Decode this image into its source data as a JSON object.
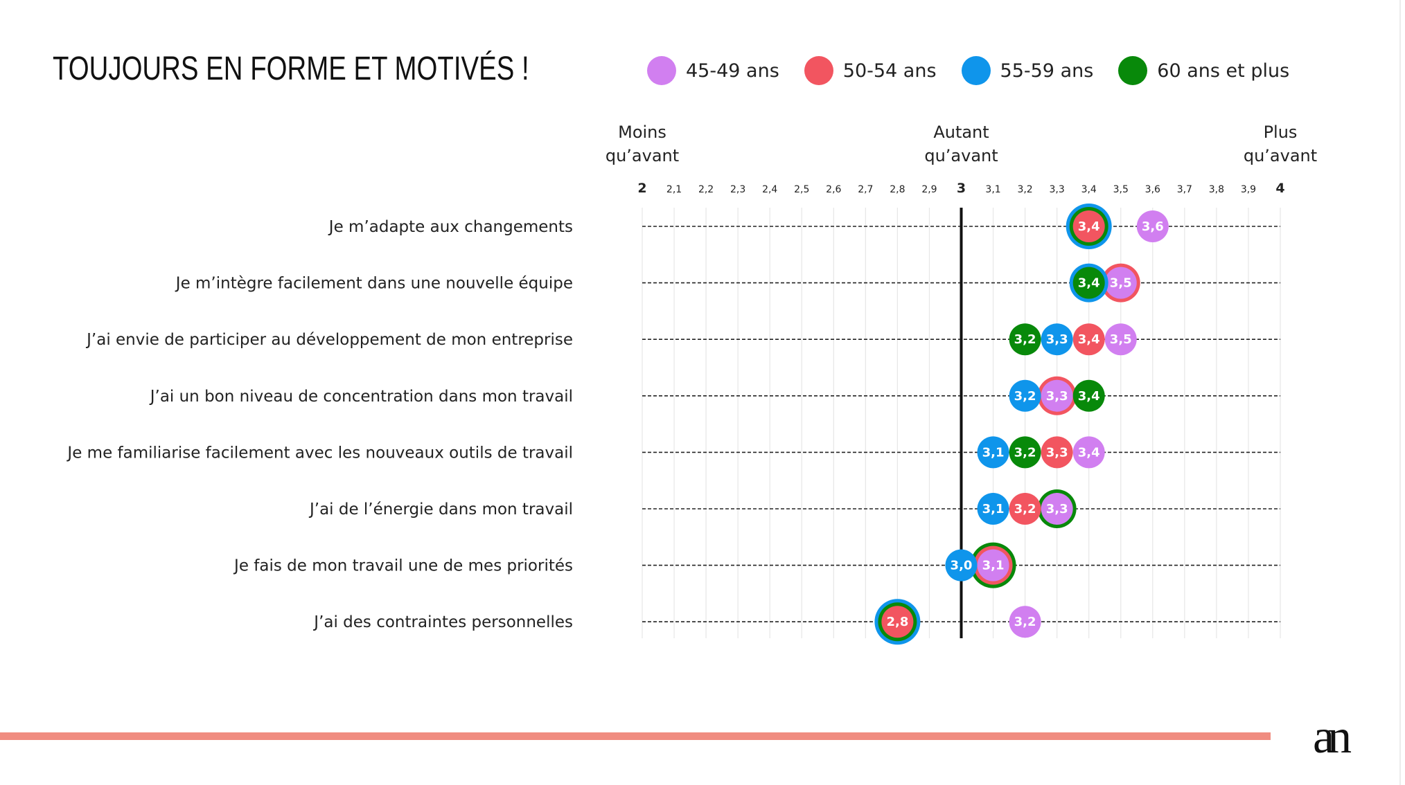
{
  "title": "TOUJOURS EN FORME ET MOTIVÉS !",
  "brand": {
    "logo_text": "an"
  },
  "colors": {
    "45-49": "#d17ff0",
    "50-54": "#f25560",
    "55-59": "#0f95eb",
    "60+": "#08890a",
    "accent_bar": "#f08c80"
  },
  "legend": [
    {
      "key": "45-49",
      "label": "45-49 ans"
    },
    {
      "key": "50-54",
      "label": "50-54 ans"
    },
    {
      "key": "55-59",
      "label": "55-59 ans"
    },
    {
      "key": "60+",
      "label": "60 ans et plus"
    }
  ],
  "chart_data": {
    "type": "scatter",
    "title": "TOUJOURS EN FORME ET MOTIVÉS !",
    "scale_headers": {
      "low": [
        "Moins",
        "qu’avant"
      ],
      "mid": [
        "Autant",
        "qu’avant"
      ],
      "high": [
        "Plus",
        "qu’avant"
      ]
    },
    "xlim": [
      2,
      4
    ],
    "reference_x": 3,
    "tick_labels": [
      "2",
      "2,1",
      "2,2",
      "2,3",
      "2,4",
      "2,5",
      "2,6",
      "2,7",
      "2,8",
      "2,9",
      "3",
      "3,1",
      "3,2",
      "3,3",
      "3,4",
      "3,5",
      "3,6",
      "3,7",
      "3,8",
      "3,9",
      "4"
    ],
    "grid": true,
    "legend_position": "top",
    "series_keys": [
      "45-49",
      "50-54",
      "55-59",
      "60+"
    ],
    "rows": [
      {
        "label": "Je m’adapte aux changements",
        "values": {
          "45-49": 3.6,
          "50-54": 3.4,
          "55-59": 3.4,
          "60+": 3.4
        }
      },
      {
        "label": "Je m’intègre facilement dans une nouvelle équipe",
        "values": {
          "45-49": 3.5,
          "50-54": 3.5,
          "55-59": 3.4,
          "60+": 3.4
        }
      },
      {
        "label": "J’ai envie de participer au développement de mon entreprise",
        "values": {
          "45-49": 3.5,
          "50-54": 3.4,
          "55-59": 3.3,
          "60+": 3.2
        }
      },
      {
        "label": "J’ai un bon niveau de concentration dans mon travail",
        "values": {
          "45-49": 3.3,
          "50-54": 3.3,
          "55-59": 3.2,
          "60+": 3.4
        }
      },
      {
        "label": "Je me familiarise facilement avec les nouveaux outils de travail",
        "values": {
          "45-49": 3.4,
          "50-54": 3.3,
          "55-59": 3.1,
          "60+": 3.2
        }
      },
      {
        "label": "J’ai de l’énergie dans mon travail",
        "values": {
          "45-49": 3.3,
          "50-54": 3.2,
          "55-59": 3.1,
          "60+": 3.3
        }
      },
      {
        "label": "Je fais de mon travail une de mes priorités",
        "values": {
          "45-49": 3.1,
          "50-54": 3.1,
          "55-59": 3.0,
          "60+": 3.1
        }
      },
      {
        "label": "J’ai des contraintes personnelles",
        "values": {
          "45-49": 3.2,
          "50-54": 2.8,
          "55-59": 2.8,
          "60+": 2.8
        }
      }
    ]
  }
}
